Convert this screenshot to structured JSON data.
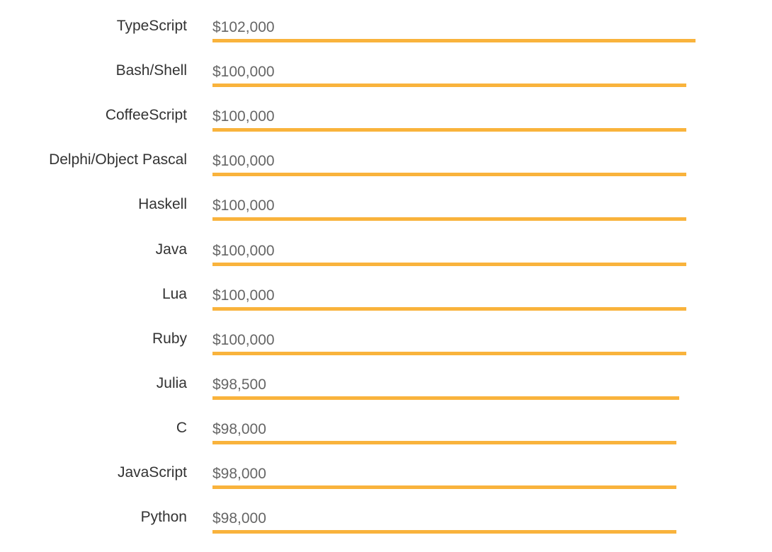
{
  "chart_data": {
    "type": "bar",
    "orientation": "horizontal",
    "title": "",
    "xlabel": "",
    "ylabel": "",
    "bar_color": "#f9b33c",
    "categories": [
      "TypeScript",
      "Bash/Shell",
      "CoffeeScript",
      "Delphi/Object Pascal",
      "Haskell",
      "Java",
      "Lua",
      "Ruby",
      "Julia",
      "C",
      "JavaScript",
      "Python"
    ],
    "values": [
      102000,
      100000,
      100000,
      100000,
      100000,
      100000,
      100000,
      100000,
      98500,
      98000,
      98000,
      98000
    ],
    "value_labels": [
      "$102,000",
      "$100,000",
      "$100,000",
      "$100,000",
      "$100,000",
      "$100,000",
      "$100,000",
      "$100,000",
      "$98,500",
      "$98,000",
      "$98,000",
      "$98,000"
    ]
  }
}
